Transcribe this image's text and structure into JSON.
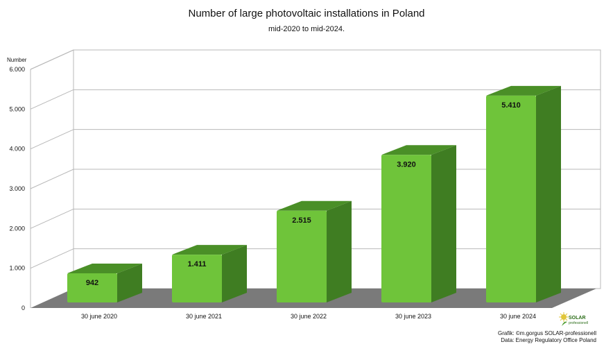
{
  "chart_data": {
    "type": "bar",
    "title": "Number of large photovoltaic installations in Poland",
    "subtitle": "mid-2020 to mid-2024.",
    "ylabel": "Number",
    "xlabel": "",
    "categories": [
      "30 june 2020",
      "30 june 2021",
      "30 june 2022",
      "30 june 2023",
      "30 june 2024"
    ],
    "values": [
      942,
      1411,
      2515,
      3920,
      5410
    ],
    "data_labels": [
      "942",
      "1.411",
      "2.515",
      "3.920",
      "5.410"
    ],
    "ylim": [
      0,
      6000
    ],
    "yticks": [
      0,
      1000,
      2000,
      3000,
      4000,
      5000,
      6000
    ],
    "ytick_labels": [
      "0",
      "1.000",
      "2.000",
      "3.000",
      "4.000",
      "5.000",
      "6.000"
    ],
    "grid": true,
    "legend": "none",
    "style": "3d-bars"
  },
  "colors": {
    "bar_front": "#6fc43a",
    "bar_side": "#3f7d22",
    "bar_top": "#4a8f27",
    "floor": "#7a7a7a",
    "grid": "#b8b8b8"
  },
  "credit": {
    "line1": "Grafik: ©m.gorgus SOLAR-professionell",
    "line2": "Data: Energy Regulatory Office Poland"
  },
  "logo": {
    "text": "SOLAR",
    "sub": "professionell",
    "icon": "sun-leaf-icon"
  }
}
